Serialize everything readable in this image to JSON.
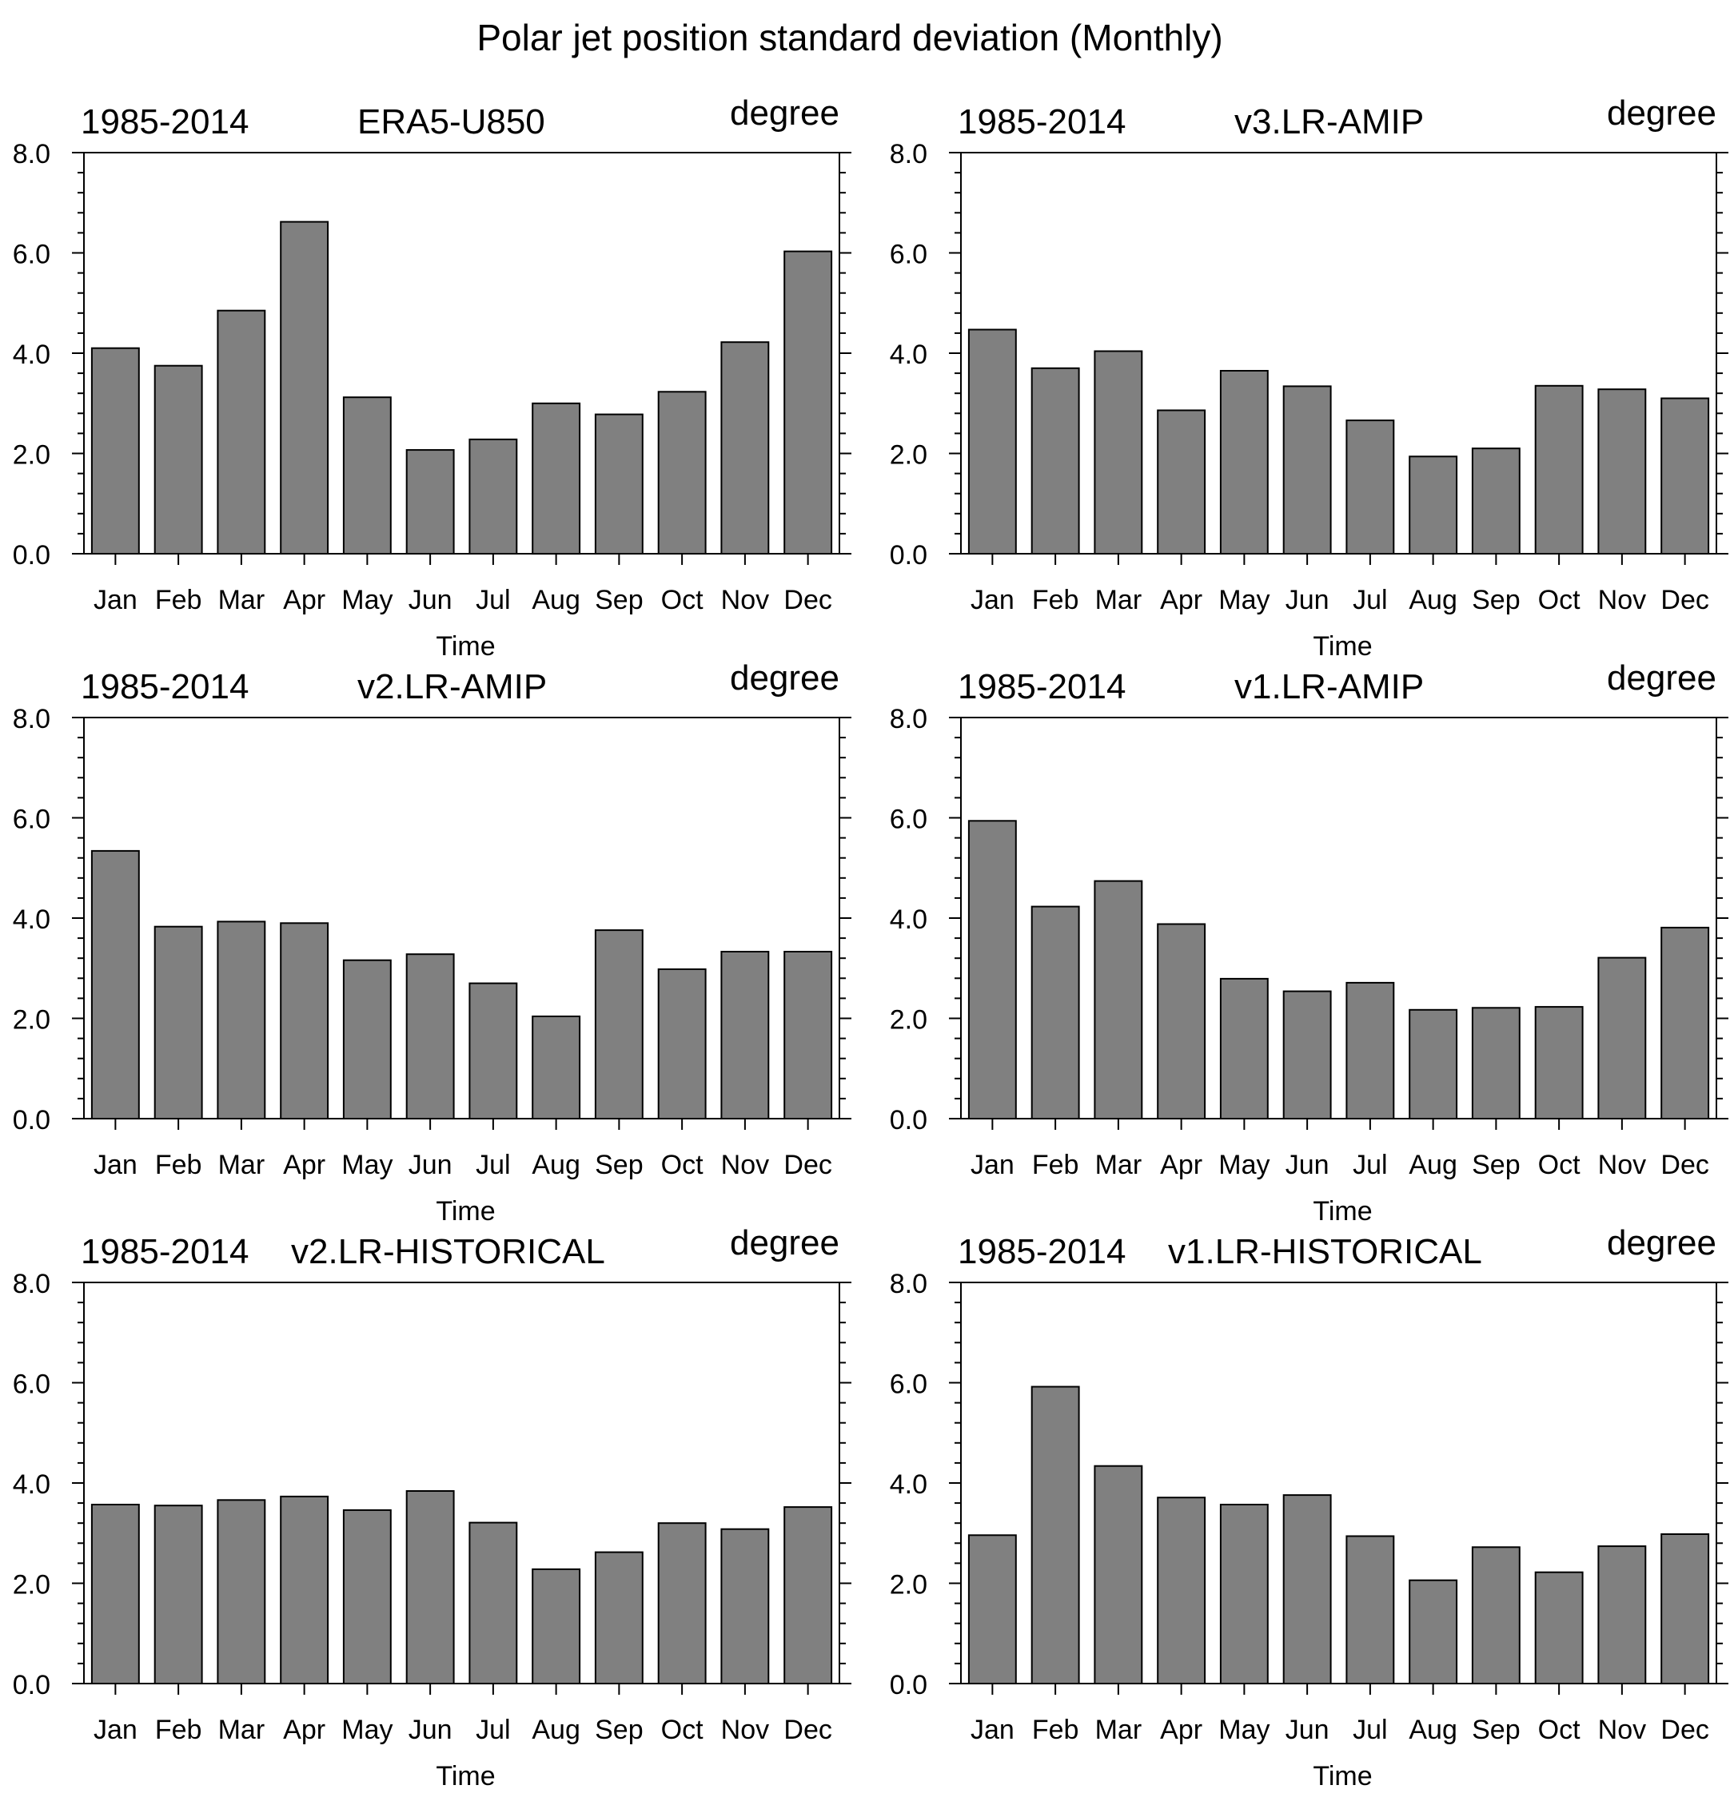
{
  "figure_title": "Polar jet position standard deviation (Monthly)",
  "chart_data": [
    {
      "type": "bar",
      "left_label": "1985-2014",
      "title": "ERA5-U850",
      "right_label": "degree",
      "xlabel": "Time",
      "ylabel": "",
      "ylim": [
        0,
        8
      ],
      "yticks": [
        "0.0",
        "2.0",
        "4.0",
        "6.0",
        "8.0"
      ],
      "categories": [
        "Jan",
        "Feb",
        "Mar",
        "Apr",
        "May",
        "Jun",
        "Jul",
        "Aug",
        "Sep",
        "Oct",
        "Nov",
        "Dec"
      ],
      "values": [
        4.1,
        3.75,
        4.85,
        6.62,
        3.12,
        2.07,
        2.28,
        3.0,
        2.78,
        3.23,
        4.22,
        6.03
      ]
    },
    {
      "type": "bar",
      "left_label": "1985-2014",
      "title": "v3.LR-AMIP",
      "right_label": "degree",
      "xlabel": "Time",
      "ylabel": "",
      "ylim": [
        0,
        8
      ],
      "yticks": [
        "0.0",
        "2.0",
        "4.0",
        "6.0",
        "8.0"
      ],
      "categories": [
        "Jan",
        "Feb",
        "Mar",
        "Apr",
        "May",
        "Jun",
        "Jul",
        "Aug",
        "Sep",
        "Oct",
        "Nov",
        "Dec"
      ],
      "values": [
        4.47,
        3.7,
        4.04,
        2.86,
        3.65,
        3.34,
        2.66,
        1.94,
        2.1,
        3.35,
        3.28,
        3.1
      ]
    },
    {
      "type": "bar",
      "left_label": "1985-2014",
      "title": "v2.LR-AMIP",
      "right_label": "degree",
      "xlabel": "Time",
      "ylabel": "",
      "ylim": [
        0,
        8
      ],
      "yticks": [
        "0.0",
        "2.0",
        "4.0",
        "6.0",
        "8.0"
      ],
      "categories": [
        "Jan",
        "Feb",
        "Mar",
        "Apr",
        "May",
        "Jun",
        "Jul",
        "Aug",
        "Sep",
        "Oct",
        "Nov",
        "Dec"
      ],
      "values": [
        5.34,
        3.83,
        3.93,
        3.9,
        3.16,
        3.28,
        2.7,
        2.04,
        3.76,
        2.98,
        3.33,
        3.33
      ]
    },
    {
      "type": "bar",
      "left_label": "1985-2014",
      "title": "v1.LR-AMIP",
      "right_label": "degree",
      "xlabel": "Time",
      "ylabel": "",
      "ylim": [
        0,
        8
      ],
      "yticks": [
        "0.0",
        "2.0",
        "4.0",
        "6.0",
        "8.0"
      ],
      "categories": [
        "Jan",
        "Feb",
        "Mar",
        "Apr",
        "May",
        "Jun",
        "Jul",
        "Aug",
        "Sep",
        "Oct",
        "Nov",
        "Dec"
      ],
      "values": [
        5.94,
        4.23,
        4.74,
        3.88,
        2.79,
        2.54,
        2.71,
        2.17,
        2.21,
        2.23,
        3.21,
        3.81
      ]
    },
    {
      "type": "bar",
      "left_label": "1985-2014",
      "title": "v2.LR-HISTORICAL",
      "right_label": "degree",
      "xlabel": "Time",
      "ylabel": "",
      "ylim": [
        0,
        8
      ],
      "yticks": [
        "0.0",
        "2.0",
        "4.0",
        "6.0",
        "8.0"
      ],
      "categories": [
        "Jan",
        "Feb",
        "Mar",
        "Apr",
        "May",
        "Jun",
        "Jul",
        "Aug",
        "Sep",
        "Oct",
        "Nov",
        "Dec"
      ],
      "values": [
        3.57,
        3.55,
        3.66,
        3.73,
        3.46,
        3.84,
        3.21,
        2.28,
        2.62,
        3.2,
        3.08,
        3.52
      ]
    },
    {
      "type": "bar",
      "left_label": "1985-2014",
      "title": "v1.LR-HISTORICAL",
      "right_label": "degree",
      "xlabel": "Time",
      "ylabel": "",
      "ylim": [
        0,
        8
      ],
      "yticks": [
        "0.0",
        "2.0",
        "4.0",
        "6.0",
        "8.0"
      ],
      "categories": [
        "Jan",
        "Feb",
        "Mar",
        "Apr",
        "May",
        "Jun",
        "Jul",
        "Aug",
        "Sep",
        "Oct",
        "Nov",
        "Dec"
      ],
      "values": [
        2.96,
        5.92,
        4.34,
        3.71,
        3.57,
        3.76,
        2.94,
        2.06,
        2.72,
        2.22,
        2.74,
        2.98
      ]
    }
  ],
  "colors": {
    "bar_fill": "#808080",
    "bar_stroke": "#000000",
    "axis": "#000000",
    "background": "#ffffff"
  }
}
